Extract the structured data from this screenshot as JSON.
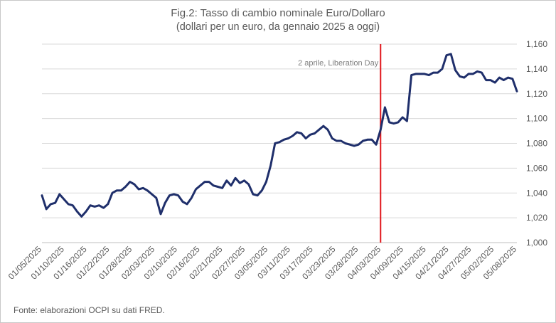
{
  "chart_data": {
    "type": "line",
    "title": "Fig.2: Tasso di cambio nominale Euro/Dollaro",
    "subtitle": "(dollari per un euro, da gennaio 2025 a oggi)",
    "xlabel": "",
    "ylabel": "",
    "ylim": [
      1.0,
      1.16
    ],
    "y_ticks": [
      1.0,
      1.02,
      1.04,
      1.06,
      1.08,
      1.1,
      1.12,
      1.14,
      1.16
    ],
    "y_tick_labels": [
      "1,000",
      "1,020",
      "1,040",
      "1,060",
      "1,080",
      "1,100",
      "1,120",
      "1,140",
      "1,160"
    ],
    "x_tick_labels": [
      "01/05/2025",
      "01/10/2025",
      "01/16/2025",
      "01/22/2025",
      "01/28/2025",
      "02/03/2025",
      "02/10/2025",
      "02/16/2025",
      "02/21/2025",
      "02/27/2025",
      "03/05/2025",
      "03/11/2025",
      "03/17/2025",
      "03/23/2025",
      "03/28/2025",
      "04/03/2025",
      "04/09/2025",
      "04/15/2025",
      "04/21/2025",
      "04/27/2025",
      "05/02/2025",
      "05/08/2025"
    ],
    "grid": "horizontal",
    "series": [
      {
        "values": [
          1.038,
          1.027,
          1.031,
          1.032,
          1.039,
          1.035,
          1.031,
          1.03,
          1.025,
          1.021,
          1.025,
          1.03,
          1.029,
          1.03,
          1.028,
          1.031,
          1.04,
          1.042,
          1.042,
          1.045,
          1.049,
          1.047,
          1.043,
          1.044,
          1.042,
          1.039,
          1.036,
          1.023,
          1.032,
          1.038,
          1.039,
          1.038,
          1.033,
          1.031,
          1.036,
          1.043,
          1.046,
          1.049,
          1.049,
          1.046,
          1.045,
          1.044,
          1.05,
          1.046,
          1.052,
          1.048,
          1.05,
          1.047,
          1.039,
          1.038,
          1.042,
          1.049,
          1.062,
          1.08,
          1.081,
          1.083,
          1.084,
          1.086,
          1.089,
          1.088,
          1.084,
          1.087,
          1.088,
          1.091,
          1.094,
          1.091,
          1.084,
          1.082,
          1.082,
          1.08,
          1.079,
          1.078,
          1.079,
          1.082,
          1.083,
          1.083,
          1.079,
          1.091,
          1.109,
          1.097,
          1.096,
          1.097,
          1.101,
          1.098,
          1.135,
          1.136,
          1.136,
          1.136,
          1.135,
          1.137,
          1.137,
          1.14,
          1.151,
          1.152,
          1.139,
          1.134,
          1.133,
          1.136,
          1.136,
          1.138,
          1.137,
          1.131,
          1.131,
          1.129,
          1.133,
          1.131,
          1.133,
          1.132,
          1.122
        ],
        "color": "#1f2f6b"
      }
    ],
    "annotations": [
      {
        "text": "2 aprile, Liberation Day",
        "at_point_index": 77,
        "color": "#e0161b"
      }
    ]
  },
  "source": "Fonte: elaborazioni OCPI su dati FRED."
}
